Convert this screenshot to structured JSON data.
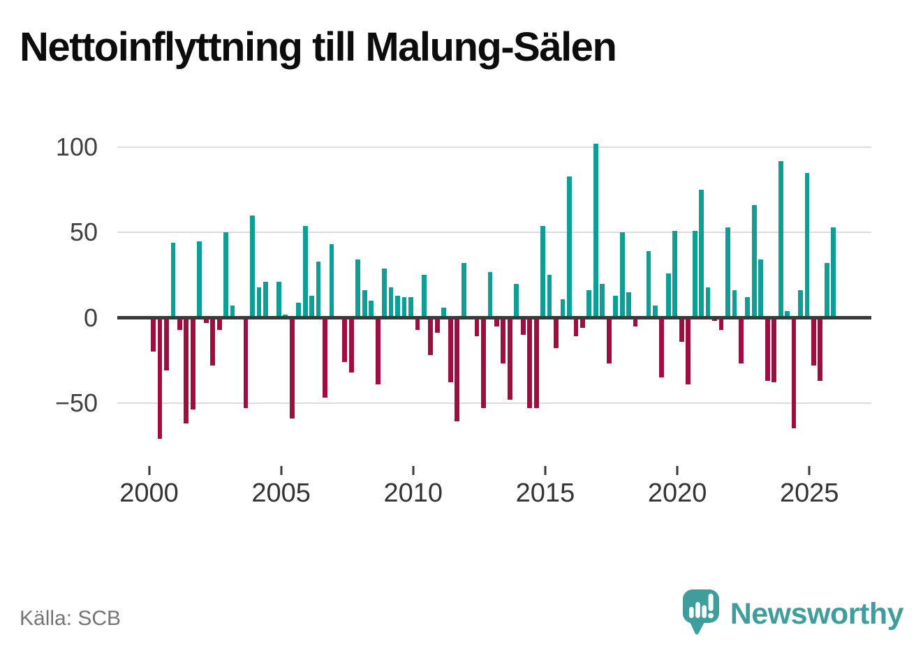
{
  "title": "Nettoinflyttning till Malung-Sälen",
  "source": "Källa: SCB",
  "branding": {
    "name": "Newsworthy",
    "icon": "newsworthy-speech-bubble-chart-icon"
  },
  "colors": {
    "positive": "#0d9e96",
    "negative": "#a00d41",
    "grid": "#dcdcdc",
    "zero_line": "#3a3a3a",
    "axis_text": "#3f3f3f",
    "xaxis_text": "#333333",
    "title_text": "#0c0c0c",
    "source_text": "#757575",
    "brand": "#3f9e9b",
    "background": "#ffffff"
  },
  "chart_data": {
    "type": "bar",
    "title": "Nettoinflyttning till Malung-Sälen",
    "xlabel": "",
    "ylabel": "",
    "frequency": "quarterly",
    "grid": true,
    "ylim": [
      -80,
      110
    ],
    "yticks": [
      100,
      50,
      0,
      -50
    ],
    "ytick_labels": [
      "100",
      "50",
      "0",
      "−50"
    ],
    "xticks": [
      2000,
      2005,
      2010,
      2015,
      2020,
      2025
    ],
    "xtick_labels": [
      "2000",
      "2005",
      "2010",
      "2015",
      "2020",
      "2025"
    ],
    "positive_color": "#0d9e96",
    "negative_color": "#a00d41",
    "x": [
      "2000Q1",
      "2000Q2",
      "2000Q3",
      "2000Q4",
      "2001Q1",
      "2001Q2",
      "2001Q3",
      "2001Q4",
      "2002Q1",
      "2002Q2",
      "2002Q3",
      "2002Q4",
      "2003Q1",
      "2003Q2",
      "2003Q3",
      "2003Q4",
      "2004Q1",
      "2004Q2",
      "2004Q3",
      "2004Q4",
      "2005Q1",
      "2005Q2",
      "2005Q3",
      "2005Q4",
      "2006Q1",
      "2006Q2",
      "2006Q3",
      "2006Q4",
      "2007Q1",
      "2007Q2",
      "2007Q3",
      "2007Q4",
      "2008Q1",
      "2008Q2",
      "2008Q3",
      "2008Q4",
      "2009Q1",
      "2009Q2",
      "2009Q3",
      "2009Q4",
      "2010Q1",
      "2010Q2",
      "2010Q3",
      "2010Q4",
      "2011Q1",
      "2011Q2",
      "2011Q3",
      "2011Q4",
      "2012Q1",
      "2012Q2",
      "2012Q3",
      "2012Q4",
      "2013Q1",
      "2013Q2",
      "2013Q3",
      "2013Q4",
      "2014Q1",
      "2014Q2",
      "2014Q3",
      "2014Q4",
      "2015Q1",
      "2015Q2",
      "2015Q3",
      "2015Q4",
      "2016Q1",
      "2016Q2",
      "2016Q3",
      "2016Q4",
      "2017Q1",
      "2017Q2",
      "2017Q3",
      "2017Q4",
      "2018Q1",
      "2018Q2",
      "2018Q3",
      "2018Q4",
      "2019Q1",
      "2019Q2",
      "2019Q3",
      "2019Q4",
      "2020Q1",
      "2020Q2",
      "2020Q3",
      "2020Q4",
      "2021Q1",
      "2021Q2",
      "2021Q3",
      "2021Q4",
      "2022Q1",
      "2022Q2",
      "2022Q3",
      "2022Q4",
      "2023Q1",
      "2023Q2",
      "2023Q3",
      "2023Q4",
      "2024Q1",
      "2024Q2",
      "2024Q3",
      "2024Q4",
      "2025Q1",
      "2025Q2",
      "2025Q3",
      "2025Q4"
    ],
    "values": [
      -20,
      -71,
      -31,
      44,
      -7,
      -62,
      -54,
      45,
      -3,
      -28,
      -7,
      50,
      7,
      0,
      -53,
      60,
      18,
      21,
      0,
      21,
      2,
      -59,
      9,
      54,
      13,
      33,
      -47,
      43,
      0,
      -26,
      -32,
      34,
      16,
      10,
      -39,
      29,
      18,
      13,
      12,
      12,
      -7,
      25,
      -22,
      -9,
      6,
      -38,
      -61,
      32,
      0,
      -11,
      -53,
      27,
      -5,
      -27,
      -48,
      20,
      -10,
      -53,
      -53,
      54,
      25,
      -18,
      11,
      83,
      -11,
      -6,
      16,
      102,
      20,
      -27,
      13,
      50,
      15,
      -5,
      0,
      39,
      7,
      -35,
      26,
      51,
      -14,
      -39,
      51,
      75,
      18,
      -2,
      -7,
      53,
      16,
      -27,
      12,
      66,
      34,
      -37,
      -38,
      92,
      4,
      -65,
      16,
      85,
      -28,
      -37,
      32,
      53
    ]
  }
}
